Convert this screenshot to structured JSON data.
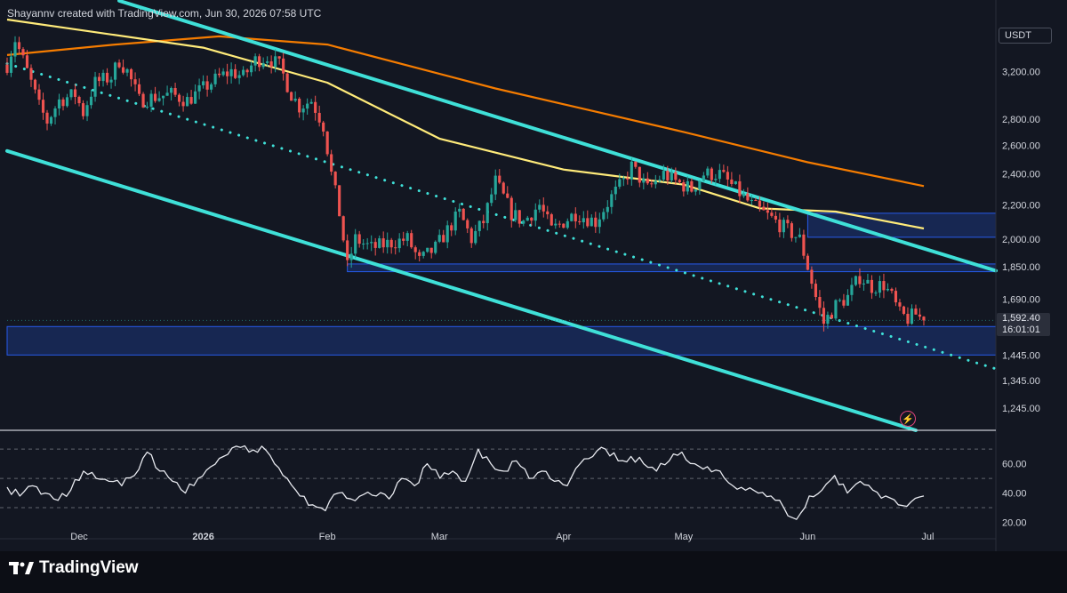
{
  "header": {
    "attribution": "Shayannv created with TradingView.com, Jun 30, 2026 07:58 UTC"
  },
  "currency_badge": "USDT",
  "last_price": {
    "price": "1,592.40",
    "countdown": "16:01:01"
  },
  "brand": {
    "name": "TradingView"
  },
  "icons": {
    "logo": "tradingview-logo-icon",
    "flash": "lightning-icon"
  },
  "colors": {
    "bg": "#131722",
    "up": "#26a69a",
    "down": "#ef5350",
    "ma200": "#f57c00",
    "ma100": "#ffeb7a",
    "channel": "#3fe0d8",
    "zone": "#2962ff",
    "rsi": "#e8eaf0"
  },
  "chart_data": [
    {
      "type": "candlestick",
      "title": "",
      "ylabel": "",
      "y_scale": "log",
      "ylim": [
        1170,
        3700
      ],
      "y_ticks": [
        "3,200.00",
        "2,800.00",
        "2,600.00",
        "2,400.00",
        "2,200.00",
        "2,000.00",
        "1,850.00",
        "1,690.00",
        "1,445.00",
        "1,345.00",
        "1,245.00"
      ],
      "x_ticks": [
        "Dec",
        "2026",
        "Feb",
        "Mar",
        "Apr",
        "May",
        "Jun",
        "Jul"
      ],
      "price_path": [
        [
          "2025-11-13",
          3260
        ],
        [
          "2025-11-15",
          3500
        ],
        [
          "2025-11-18",
          3200
        ],
        [
          "2025-11-21",
          2900
        ],
        [
          "2025-11-23",
          2780
        ],
        [
          "2025-11-26",
          2950
        ],
        [
          "2025-11-30",
          3000
        ],
        [
          "2025-12-02",
          2850
        ],
        [
          "2025-12-05",
          3100
        ],
        [
          "2025-12-09",
          3150
        ],
        [
          "2025-12-11",
          3300
        ],
        [
          "2025-12-13",
          3200
        ],
        [
          "2025-12-16",
          2950
        ],
        [
          "2025-12-20",
          2980
        ],
        [
          "2025-12-24",
          3000
        ],
        [
          "2025-12-28",
          2950
        ],
        [
          "2026-01-01",
          3050
        ],
        [
          "2026-01-05",
          3150
        ],
        [
          "2026-01-08",
          3200
        ],
        [
          "2026-01-11",
          3150
        ],
        [
          "2026-01-14",
          3300
        ],
        [
          "2026-01-17",
          3330
        ],
        [
          "2026-01-20",
          3250
        ],
        [
          "2026-01-23",
          3000
        ],
        [
          "2026-01-25",
          2900
        ],
        [
          "2026-01-28",
          2950
        ],
        [
          "2026-01-31",
          2750
        ],
        [
          "2026-02-02",
          2400
        ],
        [
          "2026-02-04",
          2150
        ],
        [
          "2026-02-06",
          1850
        ],
        [
          "2026-02-08",
          2000
        ],
        [
          "2026-02-12",
          1950
        ],
        [
          "2026-02-17",
          1980
        ],
        [
          "2026-02-21",
          2000
        ],
        [
          "2026-02-24",
          1880
        ],
        [
          "2026-02-28",
          1950
        ],
        [
          "2026-03-03",
          2050
        ],
        [
          "2026-03-06",
          2150
        ],
        [
          "2026-03-09",
          2000
        ],
        [
          "2026-03-12",
          2100
        ],
        [
          "2026-03-15",
          2350
        ],
        [
          "2026-03-19",
          2150
        ],
        [
          "2026-03-22",
          2100
        ],
        [
          "2026-03-26",
          2200
        ],
        [
          "2026-03-29",
          2050
        ],
        [
          "2026-04-01",
          2100
        ],
        [
          "2026-04-04",
          2150
        ],
        [
          "2026-04-09",
          2100
        ],
        [
          "2026-04-13",
          2250
        ],
        [
          "2026-04-16",
          2350
        ],
        [
          "2026-04-18",
          2450
        ],
        [
          "2026-04-22",
          2300
        ],
        [
          "2026-04-26",
          2400
        ],
        [
          "2026-04-29",
          2350
        ],
        [
          "2026-05-03",
          2300
        ],
        [
          "2026-05-06",
          2400
        ],
        [
          "2026-05-10",
          2400
        ],
        [
          "2026-05-14",
          2300
        ],
        [
          "2026-05-18",
          2200
        ],
        [
          "2026-05-21",
          2150
        ],
        [
          "2026-05-24",
          2100
        ],
        [
          "2026-05-27",
          2050
        ],
        [
          "2026-05-30",
          2000
        ],
        [
          "2026-06-01",
          1850
        ],
        [
          "2026-06-03",
          1700
        ],
        [
          "2026-06-05",
          1580
        ],
        [
          "2026-06-08",
          1660
        ],
        [
          "2026-06-11",
          1700
        ],
        [
          "2026-06-14",
          1800
        ],
        [
          "2026-06-17",
          1750
        ],
        [
          "2026-06-20",
          1760
        ],
        [
          "2026-06-22",
          1700
        ],
        [
          "2026-06-24",
          1620
        ],
        [
          "2026-06-26",
          1600
        ],
        [
          "2026-06-28",
          1620
        ],
        [
          "2026-06-30",
          1592
        ]
      ],
      "moving_averages": [
        {
          "color": "#f57c00",
          "points": [
            [
              "2025-11-13",
              3350
            ],
            [
              "2025-12-10",
              3450
            ],
            [
              "2026-01-05",
              3530
            ],
            [
              "2026-02-01",
              3450
            ],
            [
              "2026-03-15",
              3050
            ],
            [
              "2026-05-01",
              2700
            ],
            [
              "2026-06-01",
              2480
            ],
            [
              "2026-06-30",
              2320
            ]
          ]
        },
        {
          "color": "#ffeb7a",
          "points": [
            [
              "2025-11-13",
              3700
            ],
            [
              "2026-01-01",
              3420
            ],
            [
              "2026-02-01",
              3100
            ],
            [
              "2026-03-01",
              2650
            ],
            [
              "2026-04-01",
              2430
            ],
            [
              "2026-05-01",
              2330
            ],
            [
              "2026-05-20",
              2180
            ],
            [
              "2026-06-08",
              2160
            ],
            [
              "2026-06-30",
              2060
            ]
          ]
        }
      ],
      "trendlines": [
        {
          "style": "solid",
          "points": [
            [
              "2025-12-11",
              3900
            ],
            [
              "2026-07-18",
              1830
            ]
          ]
        },
        {
          "style": "solid",
          "points": [
            [
              "2025-11-13",
              2560
            ],
            [
              "2026-06-28",
              1170
            ]
          ]
        },
        {
          "style": "dotted",
          "points": [
            [
              "2025-11-13",
              3270
            ],
            [
              "2026-07-18",
              1390
            ]
          ]
        }
      ],
      "zones": [
        {
          "from": "2026-06-01",
          "to": "2026-07-18",
          "low": 2010,
          "high": 2150
        },
        {
          "from": "2026-02-06",
          "to": "2026-07-18",
          "low": 1825,
          "high": 1865
        },
        {
          "from": "2025-11-13",
          "to": "2026-07-18",
          "low": 1445,
          "high": 1565
        }
      ]
    },
    {
      "type": "line",
      "title": "",
      "series": [
        {
          "values": [
            44,
            38,
            45,
            40,
            35,
            42,
            55,
            50,
            48,
            45,
            52,
            68,
            55,
            48,
            40,
            50,
            58,
            65,
            72,
            68,
            72,
            60,
            50,
            38,
            32,
            28,
            40,
            36,
            39,
            38,
            36,
            50,
            45,
            60,
            50,
            55,
            48,
            70,
            60,
            55,
            62,
            50,
            55,
            48,
            45,
            60,
            65,
            70,
            62,
            65,
            60,
            55,
            62,
            68,
            60,
            58,
            55,
            45,
            42,
            40,
            38,
            30,
            22,
            38,
            42,
            52,
            40,
            48,
            42,
            38,
            32,
            34,
            38
          ]
        }
      ],
      "ylim": [
        10,
        78
      ],
      "y_ticks": [
        "60.00",
        "40.00",
        "20.00"
      ],
      "levels": [
        70,
        50,
        30
      ]
    }
  ]
}
